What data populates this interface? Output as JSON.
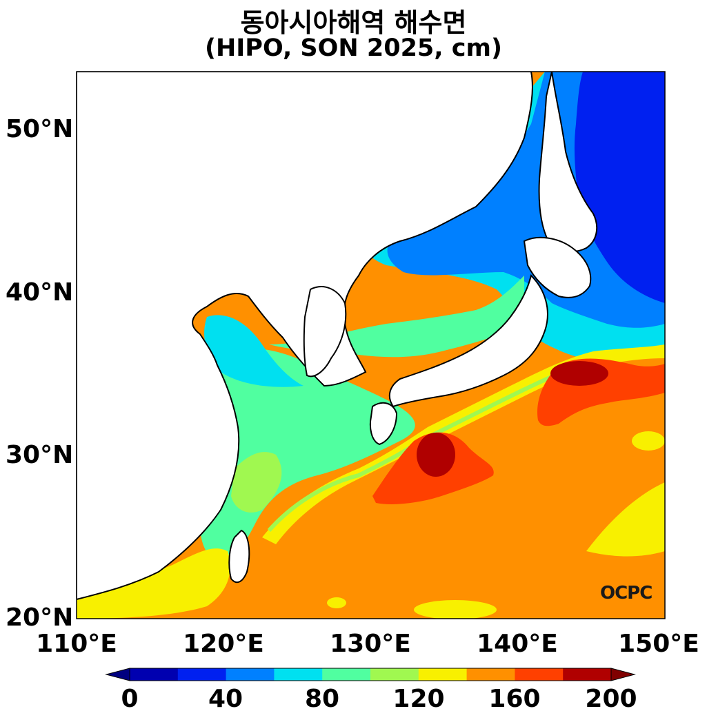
{
  "title": "동아시아해역 해수면",
  "subtitle": "(HIPO, SON 2025, cm)",
  "lat_labels": [
    "50°N",
    "40°N",
    "30°N",
    "20°N"
  ],
  "lon_labels": [
    "110°E",
    "120°E",
    "130°E",
    "140°E",
    "150°E"
  ],
  "colorbar": {
    "tick_labels": [
      "0",
      "40",
      "80",
      "120",
      "160",
      "200"
    ],
    "colors": [
      "#0000b0",
      "#0020f0",
      "#0080ff",
      "#00e0f0",
      "#50ffa0",
      "#a0f850",
      "#f8f000",
      "#ff9000",
      "#ff4000",
      "#b00000"
    ],
    "min": 0,
    "max": 200,
    "step": 20
  },
  "logo": "OCPC"
}
